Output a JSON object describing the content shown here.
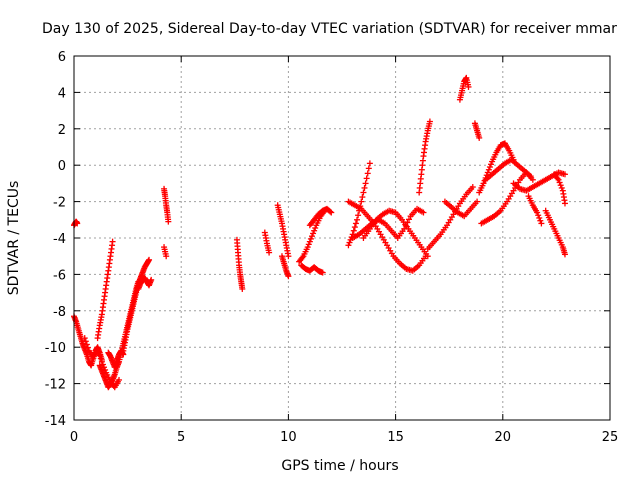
{
  "chart_data": {
    "type": "scatter",
    "title": "Day 130 of 2025, Sidereal Day-to-day VTEC variation (SDTVAR) for receiver mmar",
    "xlabel": "GPS time / hours",
    "ylabel": "SDTVAR / TECUs",
    "xlim": [
      0,
      25
    ],
    "ylim": [
      -14,
      6
    ],
    "xticks": [
      0,
      5,
      10,
      15,
      20,
      25
    ],
    "yticks": [
      -14,
      -12,
      -10,
      -8,
      -6,
      -4,
      -2,
      0,
      2,
      4,
      6
    ],
    "grid": true,
    "marker": "plus",
    "color": "#ff0000",
    "series": [
      {
        "x": [
          0.0,
          0.05,
          0.1,
          0.15
        ],
        "y": [
          -3.3,
          -3.2,
          -3.1,
          -3.2
        ]
      },
      {
        "x": [
          0.0,
          0.1,
          0.2,
          0.3,
          0.4,
          0.5,
          0.6,
          0.7,
          0.8,
          0.9,
          1.0,
          1.1,
          1.2,
          1.3
        ],
        "y": [
          -8.3,
          -8.6,
          -9.0,
          -9.4,
          -9.8,
          -10.1,
          -10.4,
          -10.8,
          -11.0,
          -10.6,
          -10.2,
          -10.0,
          -10.3,
          -10.7
        ]
      },
      {
        "x": [
          0.5,
          0.7,
          0.9,
          1.1,
          1.3,
          1.5,
          1.7,
          1.9,
          2.1
        ],
        "y": [
          -9.5,
          -10.2,
          -10.6,
          -10.1,
          -10.8,
          -11.4,
          -11.9,
          -12.2,
          -11.8
        ]
      },
      {
        "x": [
          1.2,
          1.3,
          1.4,
          1.5,
          1.6,
          1.7,
          1.8,
          1.9,
          2.0,
          2.1,
          2.2,
          2.3,
          2.4,
          2.5,
          2.6,
          2.7,
          2.8,
          2.9,
          3.0
        ],
        "y": [
          -11.0,
          -11.3,
          -11.6,
          -11.9,
          -12.2,
          -12.0,
          -11.8,
          -11.5,
          -11.1,
          -10.8,
          -10.3,
          -9.8,
          -9.3,
          -8.8,
          -8.3,
          -7.8,
          -7.3,
          -6.8,
          -6.4
        ]
      },
      {
        "x": [
          1.1,
          1.2,
          1.3,
          1.4,
          1.5,
          1.6,
          1.7,
          1.8
        ],
        "y": [
          -9.5,
          -8.8,
          -8.2,
          -7.4,
          -6.6,
          -5.8,
          -5.0,
          -4.2
        ]
      },
      {
        "x": [
          1.6,
          1.7,
          1.8,
          1.9,
          2.0,
          2.1,
          2.2,
          2.3
        ],
        "y": [
          -10.3,
          -10.5,
          -10.8,
          -11.1,
          -10.7,
          -10.4,
          -10.2,
          -10.4
        ]
      },
      {
        "x": [
          2.3,
          2.4,
          2.5,
          2.6,
          2.7,
          2.8,
          2.9,
          3.0,
          3.1,
          3.2,
          3.3,
          3.4,
          3.5
        ],
        "y": [
          -10.2,
          -9.6,
          -9.0,
          -8.5,
          -8.0,
          -7.5,
          -7.0,
          -6.5,
          -6.2,
          -5.9,
          -5.6,
          -5.4,
          -5.2
        ]
      },
      {
        "x": [
          3.0,
          3.1,
          3.2,
          3.3,
          3.4,
          3.5,
          3.6
        ],
        "y": [
          -6.8,
          -6.5,
          -6.3,
          -6.2,
          -6.4,
          -6.6,
          -6.3
        ]
      },
      {
        "x": [
          4.2,
          4.25,
          4.3,
          4.35,
          4.4
        ],
        "y": [
          -1.3,
          -1.7,
          -2.2,
          -2.6,
          -3.1
        ]
      },
      {
        "x": [
          4.2,
          4.3
        ],
        "y": [
          -4.5,
          -5.0
        ]
      },
      {
        "x": [
          7.6,
          7.65,
          7.7,
          7.75,
          7.8,
          7.85
        ],
        "y": [
          -4.1,
          -4.8,
          -5.5,
          -6.0,
          -6.4,
          -6.8
        ]
      },
      {
        "x": [
          8.9,
          9.0,
          9.1
        ],
        "y": [
          -3.7,
          -4.3,
          -4.8
        ]
      },
      {
        "x": [
          9.5,
          9.6,
          9.7,
          9.8,
          9.9,
          10.0
        ],
        "y": [
          -2.2,
          -2.7,
          -3.2,
          -3.8,
          -4.4,
          -5.0
        ]
      },
      {
        "x": [
          9.7,
          9.8,
          9.9,
          10.0
        ],
        "y": [
          -5.0,
          -5.4,
          -5.8,
          -6.1
        ]
      },
      {
        "x": [
          10.5,
          10.7,
          10.9,
          11.1,
          11.3,
          11.5,
          11.7
        ],
        "y": [
          -5.3,
          -5.0,
          -4.5,
          -3.9,
          -3.3,
          -2.8,
          -2.5
        ]
      },
      {
        "x": [
          10.6,
          10.8,
          11.0,
          11.2,
          11.4,
          11.6
        ],
        "y": [
          -5.5,
          -5.7,
          -5.8,
          -5.6,
          -5.8,
          -5.9
        ]
      },
      {
        "x": [
          11.0,
          11.2,
          11.4,
          11.6,
          11.8,
          12.0
        ],
        "y": [
          -3.3,
          -3.0,
          -2.7,
          -2.5,
          -2.4,
          -2.6
        ]
      },
      {
        "x": [
          12.8,
          13.0,
          13.2,
          13.4,
          13.6,
          13.8
        ],
        "y": [
          -4.4,
          -3.8,
          -3.0,
          -2.0,
          -1.0,
          0.1
        ]
      },
      {
        "x": [
          12.8,
          13.1,
          13.4,
          13.7,
          14.0,
          14.3,
          14.6,
          14.9,
          15.2,
          15.5,
          15.8,
          16.1,
          16.4
        ],
        "y": [
          -2.0,
          -2.2,
          -2.4,
          -2.8,
          -3.2,
          -3.8,
          -4.4,
          -5.0,
          -5.4,
          -5.7,
          -5.8,
          -5.5,
          -5.0
        ]
      },
      {
        "x": [
          13.5,
          13.8,
          14.1,
          14.4,
          14.7,
          15.0,
          15.3,
          15.6,
          15.9,
          16.2,
          16.5
        ],
        "y": [
          -4.0,
          -3.5,
          -3.0,
          -2.7,
          -2.5,
          -2.6,
          -3.0,
          -3.5,
          -4.0,
          -4.5,
          -5.0
        ]
      },
      {
        "x": [
          13.0,
          13.3,
          13.6,
          13.9,
          14.2,
          14.5,
          14.8,
          15.1,
          15.4,
          15.7,
          16.0,
          16.3
        ],
        "y": [
          -4.0,
          -3.8,
          -3.5,
          -3.2,
          -3.0,
          -3.2,
          -3.6,
          -4.0,
          -3.5,
          -2.8,
          -2.4,
          -2.6
        ]
      },
      {
        "x": [
          16.1,
          16.2,
          16.3,
          16.4,
          16.5,
          16.6
        ],
        "y": [
          -1.5,
          -0.5,
          0.5,
          1.3,
          1.9,
          2.4
        ]
      },
      {
        "x": [
          16.5,
          16.8,
          17.1,
          17.4,
          17.7,
          18.0,
          18.3,
          18.6
        ],
        "y": [
          -4.6,
          -4.2,
          -3.8,
          -3.3,
          -2.7,
          -2.1,
          -1.6,
          -1.2
        ]
      },
      {
        "x": [
          17.3,
          17.6,
          17.9,
          18.2,
          18.5,
          18.8
        ],
        "y": [
          -2.0,
          -2.3,
          -2.6,
          -2.8,
          -2.4,
          -2.0
        ]
      },
      {
        "x": [
          18.0,
          18.1,
          18.2,
          18.3,
          18.4
        ],
        "y": [
          3.6,
          4.1,
          4.6,
          4.8,
          4.3
        ]
      },
      {
        "x": [
          18.7,
          18.8,
          18.9
        ],
        "y": [
          2.3,
          1.9,
          1.5
        ]
      },
      {
        "x": [
          18.9,
          19.1,
          19.3,
          19.5,
          19.7,
          19.9,
          20.1,
          20.3,
          20.5
        ],
        "y": [
          -1.5,
          -1.0,
          -0.4,
          0.2,
          0.7,
          1.1,
          1.2,
          0.8,
          0.3
        ]
      },
      {
        "x": [
          19.2,
          19.5,
          19.8,
          20.1,
          20.4,
          20.7,
          21.0,
          21.3
        ],
        "y": [
          -0.8,
          -0.5,
          -0.2,
          0.1,
          0.3,
          0.0,
          -0.3,
          -0.6
        ]
      },
      {
        "x": [
          19.0,
          19.3,
          19.6,
          19.9,
          20.2,
          20.5,
          20.8,
          21.1,
          21.4
        ],
        "y": [
          -3.2,
          -3.0,
          -2.8,
          -2.5,
          -2.0,
          -1.4,
          -0.8,
          -0.4,
          -0.8
        ]
      },
      {
        "x": [
          21.2,
          21.4,
          21.6,
          21.8
        ],
        "y": [
          -1.7,
          -2.2,
          -2.6,
          -3.2
        ]
      },
      {
        "x": [
          20.5,
          20.8,
          21.1,
          21.4,
          21.7,
          22.0,
          22.3,
          22.6,
          22.9
        ],
        "y": [
          -1.0,
          -1.3,
          -1.4,
          -1.2,
          -1.0,
          -0.8,
          -0.6,
          -0.4,
          -0.5
        ]
      },
      {
        "x": [
          22.0,
          22.2,
          22.4,
          22.6,
          22.8,
          22.9
        ],
        "y": [
          -2.5,
          -3.0,
          -3.5,
          -4.0,
          -4.5,
          -4.9
        ]
      },
      {
        "x": [
          22.4,
          22.6,
          22.8,
          22.9
        ],
        "y": [
          -0.5,
          -0.8,
          -1.4,
          -2.1
        ]
      }
    ]
  }
}
